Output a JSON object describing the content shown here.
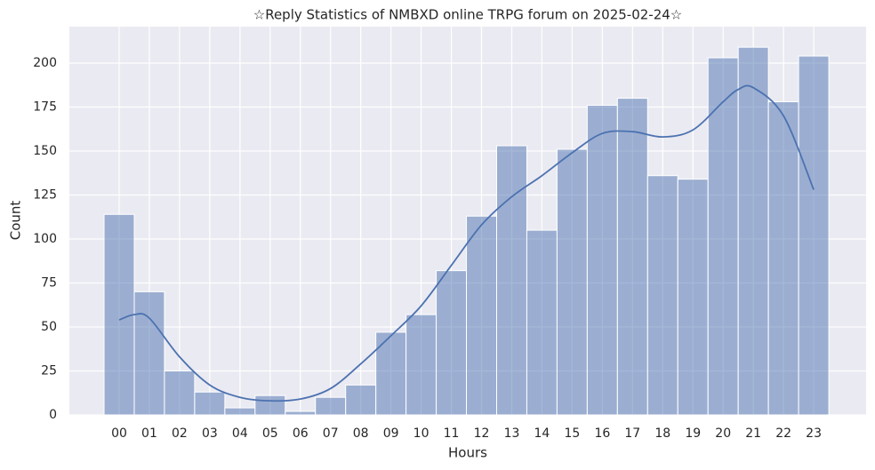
{
  "chart_data": {
    "type": "histogram",
    "title": "☆Reply Statistics of NMBXD online TRPG forum on 2025-02-24☆",
    "x_label": "Hours",
    "y_label": "Count",
    "categories": [
      "00",
      "01",
      "02",
      "03",
      "04",
      "05",
      "06",
      "07",
      "08",
      "09",
      "10",
      "11",
      "12",
      "13",
      "14",
      "15",
      "16",
      "17",
      "18",
      "19",
      "20",
      "21",
      "22",
      "23"
    ],
    "values": [
      114,
      70,
      25,
      13,
      4,
      11,
      2,
      10,
      17,
      47,
      57,
      82,
      113,
      153,
      105,
      151,
      176,
      180,
      136,
      134,
      203,
      209,
      178,
      204
    ],
    "color": "#4c72b0",
    "kde": {
      "x": [
        0,
        0.5,
        1,
        2,
        3,
        4,
        5,
        6,
        7,
        8,
        9,
        10,
        11,
        12,
        13,
        14,
        15,
        16,
        17,
        18,
        19,
        20,
        20.5,
        21,
        22,
        23
      ],
      "values": [
        54,
        57,
        55,
        33,
        17,
        10,
        8,
        9,
        15,
        29,
        45,
        62,
        85,
        108,
        124,
        136,
        149,
        160,
        161,
        158,
        162,
        178,
        185,
        186,
        170,
        128
      ]
    },
    "ylim": [
      0,
      220.7
    ],
    "yticks": [
      0,
      25,
      50,
      75,
      100,
      125,
      150,
      175,
      200
    ],
    "grid": true
  }
}
